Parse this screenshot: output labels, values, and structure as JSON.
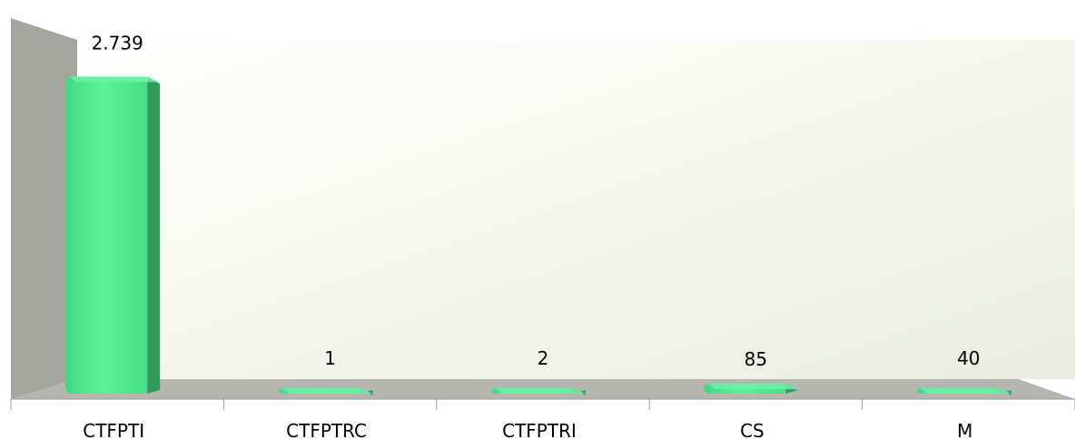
{
  "chart_data": {
    "type": "bar",
    "categories": [
      "CTFPTI",
      "CTFPTRC",
      "CTFPTRI",
      "CS",
      "M"
    ],
    "values": [
      2739,
      1,
      2,
      85,
      40
    ],
    "data_labels": [
      "2.739",
      "1",
      "2",
      "85",
      "40"
    ],
    "title": "",
    "xlabel": "",
    "ylabel": "",
    "ylim": [
      0,
      2900
    ],
    "grid": false,
    "legend": "none",
    "style": "3d",
    "colors": {
      "bar_front": "#4fe88f",
      "bar_side": "#2f9a5c",
      "bar_top": "#6ff0a6",
      "wall": "#a6a6a0",
      "floor": "#b4b4ae",
      "back_wall": "#f5f7ee"
    }
  }
}
